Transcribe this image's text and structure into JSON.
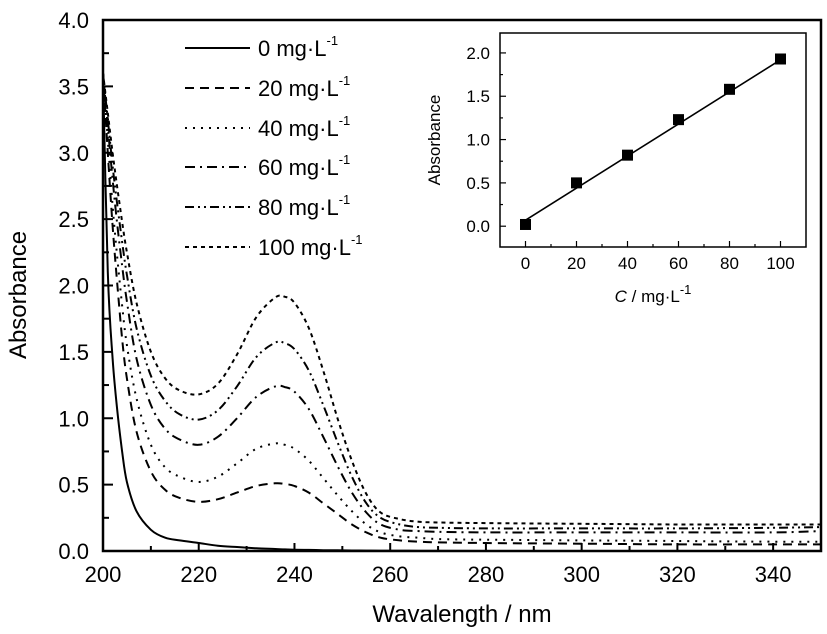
{
  "chart_data": [
    {
      "id": "main",
      "type": "line",
      "title": "",
      "xlabel": "Wavalength / nm",
      "ylabel": "Absorbance",
      "xlim": [
        200,
        350
      ],
      "ylim": [
        0,
        4.0
      ],
      "xticks": [
        200,
        220,
        240,
        260,
        280,
        300,
        320,
        340
      ],
      "xtick_labels": [
        "200",
        "220",
        "240",
        "260",
        "280",
        "300",
        "320",
        "340"
      ],
      "yticks": [
        0,
        0.5,
        1.0,
        1.5,
        2.0,
        2.5,
        3.0,
        3.5,
        4.0
      ],
      "ytick_labels": [
        "0.0",
        "0.5",
        "1.0",
        "1.5",
        "2.0",
        "2.5",
        "3.0",
        "3.5",
        "4.0"
      ],
      "grid": false,
      "legend_position": "top-left",
      "x": [
        200,
        201,
        202,
        203,
        204,
        205,
        207,
        210,
        213,
        216,
        220,
        224,
        228,
        232,
        236,
        238,
        240,
        243,
        246,
        249,
        252,
        255,
        258,
        262,
        266,
        270,
        280,
        300,
        320,
        340,
        350
      ],
      "series": [
        {
          "name": "0 mg·L-1",
          "label": "0 mg",
          "dash": "solid",
          "values": [
            3.6,
            2.1,
            1.45,
            1.05,
            0.75,
            0.52,
            0.3,
            0.16,
            0.1,
            0.08,
            0.06,
            0.04,
            0.03,
            0.02,
            0.015,
            0.012,
            0.01,
            0.008,
            0.006,
            0.005,
            0.004,
            0.003,
            0.002,
            0.002,
            0.001,
            0.001,
            0.0,
            0.0,
            0.0,
            0.0,
            0.0
          ]
        },
        {
          "name": "20 mg·L-1",
          "label": "20 mg",
          "dash": "dash",
          "values": [
            3.6,
            3.0,
            2.45,
            2.0,
            1.6,
            1.3,
            0.9,
            0.6,
            0.46,
            0.4,
            0.37,
            0.39,
            0.44,
            0.49,
            0.51,
            0.505,
            0.49,
            0.44,
            0.36,
            0.28,
            0.2,
            0.14,
            0.1,
            0.08,
            0.07,
            0.065,
            0.06,
            0.055,
            0.05,
            0.05,
            0.05
          ]
        },
        {
          "name": "40 mg·L-1",
          "label": "40 mg",
          "dash": "dot",
          "values": [
            3.6,
            3.1,
            2.6,
            2.2,
            1.85,
            1.55,
            1.15,
            0.8,
            0.63,
            0.56,
            0.52,
            0.56,
            0.66,
            0.77,
            0.81,
            0.8,
            0.77,
            0.68,
            0.55,
            0.42,
            0.3,
            0.2,
            0.14,
            0.11,
            0.1,
            0.09,
            0.085,
            0.08,
            0.075,
            0.07,
            0.07
          ]
        },
        {
          "name": "60 mg·L-1",
          "label": "60 mg",
          "dash": "dashdot",
          "values": [
            3.6,
            3.2,
            2.8,
            2.45,
            2.15,
            1.88,
            1.45,
            1.1,
            0.92,
            0.84,
            0.8,
            0.86,
            1.0,
            1.16,
            1.24,
            1.235,
            1.2,
            1.07,
            0.86,
            0.64,
            0.44,
            0.29,
            0.2,
            0.16,
            0.15,
            0.145,
            0.14,
            0.14,
            0.14,
            0.14,
            0.15
          ]
        },
        {
          "name": "80 mg·L-1",
          "label": "80 mg",
          "dash": "dashdotdot",
          "values": [
            3.6,
            3.25,
            2.9,
            2.6,
            2.33,
            2.08,
            1.68,
            1.32,
            1.13,
            1.03,
            0.99,
            1.06,
            1.24,
            1.46,
            1.57,
            1.565,
            1.52,
            1.36,
            1.1,
            0.82,
            0.56,
            0.36,
            0.25,
            0.2,
            0.18,
            0.175,
            0.17,
            0.17,
            0.17,
            0.175,
            0.18
          ]
        },
        {
          "name": "100 mg·L-1",
          "label": "100 mg",
          "dash": "shortdash",
          "values": [
            3.6,
            3.3,
            3.0,
            2.73,
            2.48,
            2.25,
            1.87,
            1.5,
            1.3,
            1.21,
            1.18,
            1.26,
            1.48,
            1.76,
            1.91,
            1.915,
            1.87,
            1.68,
            1.36,
            1.0,
            0.68,
            0.43,
            0.29,
            0.24,
            0.22,
            0.215,
            0.21,
            0.205,
            0.2,
            0.2,
            0.2
          ]
        }
      ]
    },
    {
      "id": "inset",
      "type": "scatter",
      "title": "",
      "xlabel_italic": "C",
      "xlabel_rest": " / mg·L",
      "xlabel_sup": "-1",
      "ylabel": "Absorbance",
      "xlim": [
        -10,
        110
      ],
      "ylim": [
        -0.24,
        2.23
      ],
      "xticks": [
        0,
        20,
        40,
        60,
        80,
        100
      ],
      "xtick_labels": [
        "0",
        "20",
        "40",
        "60",
        "80",
        "100"
      ],
      "yticks": [
        0.0,
        0.5,
        1.0,
        1.5,
        2.0
      ],
      "ytick_labels": [
        "0.0",
        "0.5",
        "1.0",
        "1.5",
        "2.0"
      ],
      "grid": false,
      "legend_position": "none",
      "x": [
        0,
        20,
        40,
        60,
        80,
        100
      ],
      "values": [
        0.02,
        0.5,
        0.82,
        1.23,
        1.58,
        1.93
      ],
      "fit_line": {
        "x": [
          0,
          100
        ],
        "y": [
          0.07,
          1.92
        ]
      }
    }
  ],
  "legend": {
    "entries": [
      {
        "value": "0",
        "unit": " mg·L",
        "sup": "-1"
      },
      {
        "value": "20",
        "unit": " mg·L",
        "sup": "-1"
      },
      {
        "value": "40",
        "unit": " mg·L",
        "sup": "-1"
      },
      {
        "value": "60",
        "unit": " mg·L",
        "sup": "-1"
      },
      {
        "value": "80",
        "unit": " mg·L",
        "sup": "-1"
      },
      {
        "value": "100",
        "unit": " mg·L",
        "sup": "-1"
      }
    ]
  },
  "colors": {
    "ink": "#000000",
    "background": "#ffffff"
  }
}
